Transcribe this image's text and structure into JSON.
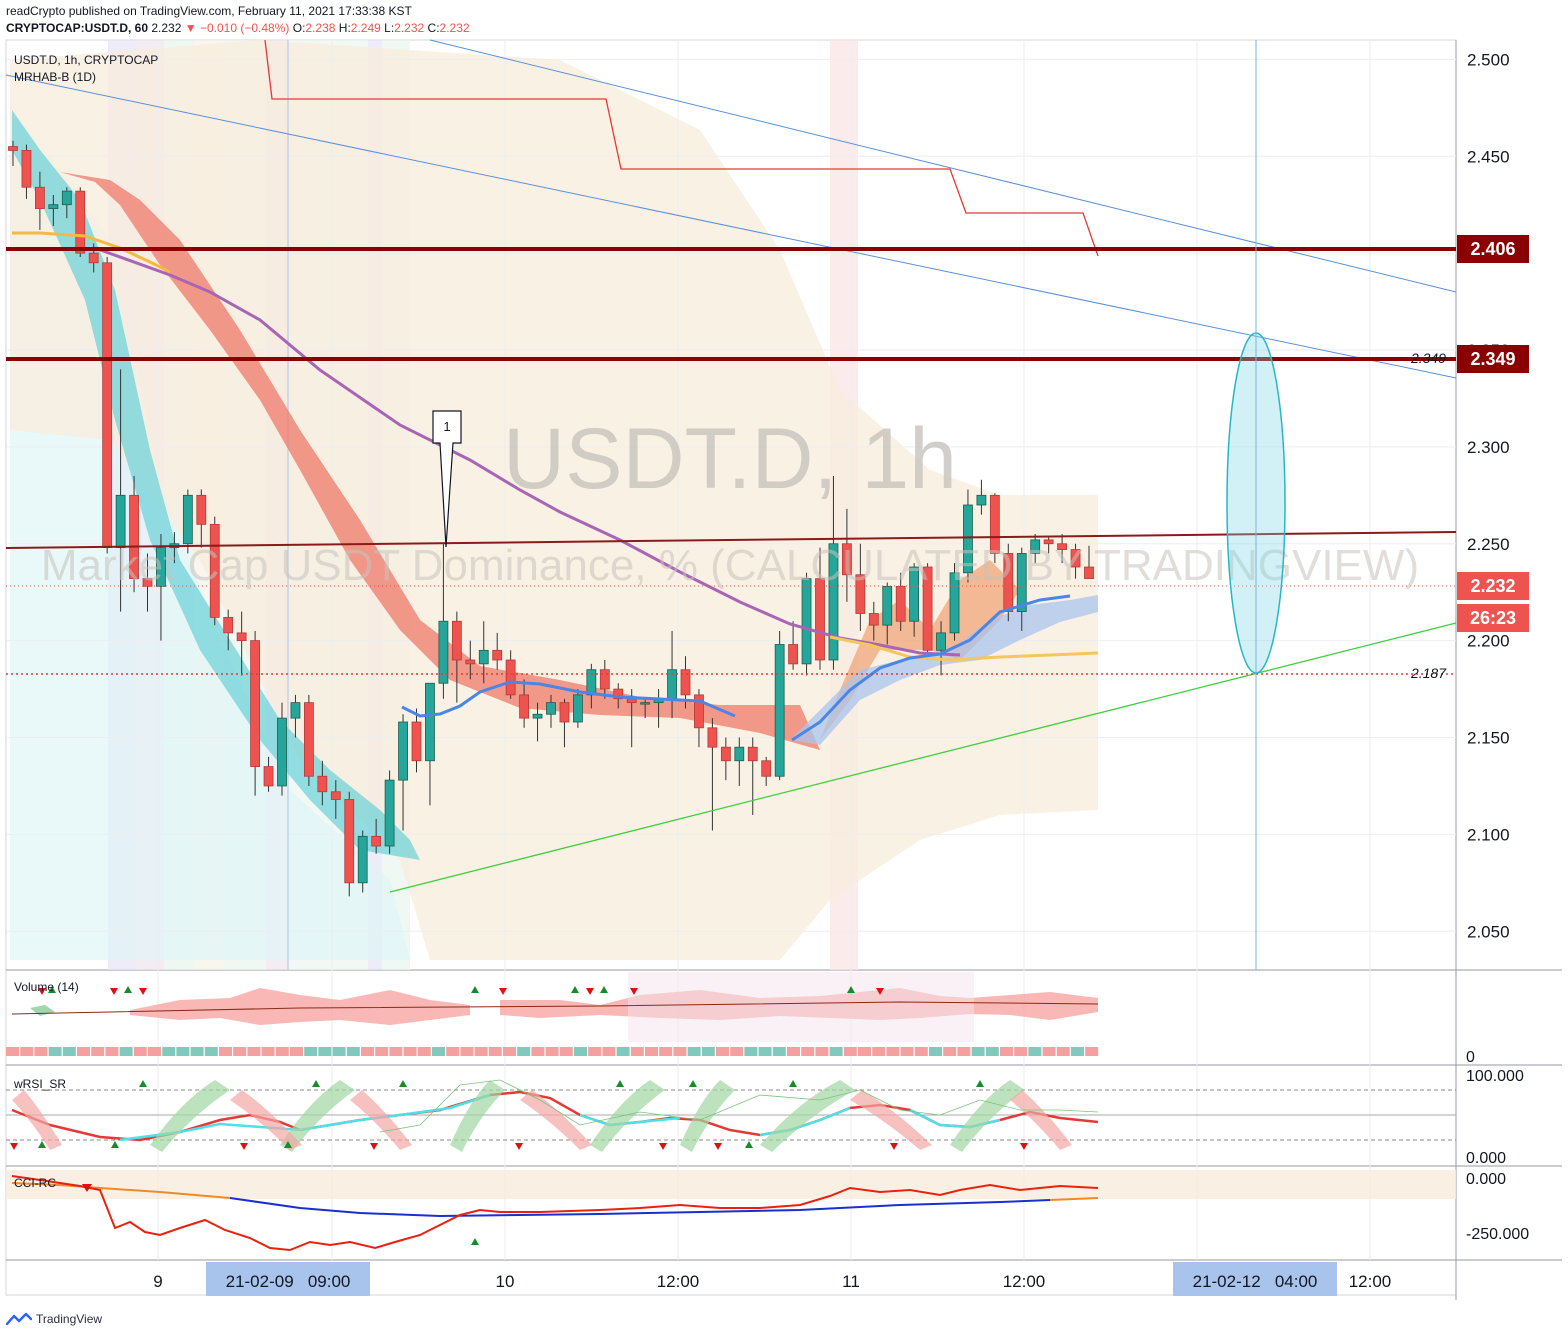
{
  "header": {
    "publisher": "readCrypto published on TradingView.com, February 11, 2021 17:33:38 KST",
    "symbol": "CRYPTOCAP:USDT.D, 60",
    "last": "2.232",
    "change": "−0.010 (−0.48%)",
    "ohlc": {
      "o_label": "O:",
      "o": "2.238",
      "h_label": "H:",
      "h": "2.249",
      "l_label": "L:",
      "l": "2.232",
      "c_label": "C:",
      "c": "2.232"
    }
  },
  "legend": {
    "series": "USDT.D, 1h, CRYPTOCAP",
    "indicator": "MRHAB-B (1D)"
  },
  "watermark": {
    "big": "USDT.D, 1h",
    "small": "Market Cap USDT Dominance, % (CALCULATED BY TRADINGVIEW)"
  },
  "annotations": {
    "marker": "1",
    "level_upper": "2.349",
    "level_lower": "2.187"
  },
  "price_badges": {
    "r1": "2.406",
    "r2": "2.349",
    "last": "2.232",
    "countdown": "26:23"
  },
  "panes": {
    "volume": "Volume (14)",
    "volume_zero": "0",
    "rsi": "wRSI_SR",
    "cci": "CCI-RC"
  },
  "colors": {
    "up": "#26a69a",
    "down": "#ef5350",
    "resistance": "#8b0000",
    "trend": "#5b8fd9",
    "support": "#3ecf3e",
    "ellipse": "#26b7c9"
  },
  "time_labels": {
    "t1": "9",
    "t1_hl": "21-02-09   09:00",
    "t2": "10",
    "t3": "12:00",
    "t4": "11",
    "t5": "12:00",
    "t6_hl": "21-02-12   04:00",
    "t7": "12:00"
  },
  "footer": {
    "brand": "TradingView"
  },
  "chart_data": {
    "type": "candlestick",
    "title": "USDT.D, 1h",
    "ylim": [
      2.03,
      2.51
    ],
    "y_ticks": [
      "2.500",
      "2.450",
      "2.400",
      "2.350",
      "2.300",
      "2.250",
      "2.200",
      "2.150",
      "2.100",
      "2.050"
    ],
    "horizontal_levels": [
      2.406,
      2.349,
      2.187
    ],
    "rsi_ticks": [
      "100.000",
      "0.000"
    ],
    "cci_ticks": [
      "0.000",
      "-250.000"
    ],
    "candles": [
      [
        2.455,
        2.458,
        2.445,
        2.453
      ],
      [
        2.453,
        2.456,
        2.428,
        2.434
      ],
      [
        2.434,
        2.442,
        2.412,
        2.423
      ],
      [
        2.423,
        2.43,
        2.414,
        2.425
      ],
      [
        2.425,
        2.434,
        2.418,
        2.432
      ],
      [
        2.432,
        2.434,
        2.398,
        2.4
      ],
      [
        2.4,
        2.405,
        2.39,
        2.395
      ],
      [
        2.395,
        2.398,
        2.245,
        2.248
      ],
      [
        2.248,
        2.34,
        2.215,
        2.275
      ],
      [
        2.275,
        2.285,
        2.225,
        2.232
      ],
      [
        2.232,
        2.245,
        2.215,
        2.228
      ],
      [
        2.228,
        2.255,
        2.2,
        2.248
      ],
      [
        2.248,
        2.256,
        2.24,
        2.25
      ],
      [
        2.25,
        2.278,
        2.245,
        2.275
      ],
      [
        2.275,
        2.278,
        2.248,
        2.26
      ],
      [
        2.26,
        2.264,
        2.208,
        2.212
      ],
      [
        2.212,
        2.216,
        2.195,
        2.204
      ],
      [
        2.204,
        2.215,
        2.182,
        2.2
      ],
      [
        2.2,
        2.205,
        2.12,
        2.135
      ],
      [
        2.135,
        2.14,
        2.122,
        2.125
      ],
      [
        2.125,
        2.168,
        2.12,
        2.16
      ],
      [
        2.16,
        2.172,
        2.15,
        2.168
      ],
      [
        2.168,
        2.172,
        2.125,
        2.13
      ],
      [
        2.13,
        2.138,
        2.115,
        2.122
      ],
      [
        2.122,
        2.128,
        2.108,
        2.118
      ],
      [
        2.118,
        2.122,
        2.068,
        2.075
      ],
      [
        2.075,
        2.102,
        2.07,
        2.099
      ],
      [
        2.099,
        2.108,
        2.09,
        2.094
      ],
      [
        2.094,
        2.133,
        2.09,
        2.128
      ],
      [
        2.128,
        2.162,
        2.102,
        2.158
      ],
      [
        2.158,
        2.165,
        2.132,
        2.138
      ],
      [
        2.138,
        2.175,
        2.115,
        2.178
      ],
      [
        2.178,
        2.25,
        2.17,
        2.21
      ],
      [
        2.21,
        2.215,
        2.168,
        2.19
      ],
      [
        2.19,
        2.2,
        2.18,
        2.188
      ],
      [
        2.188,
        2.21,
        2.178,
        2.195
      ],
      [
        2.195,
        2.204,
        2.185,
        2.19
      ],
      [
        2.19,
        2.195,
        2.17,
        2.172
      ],
      [
        2.172,
        2.18,
        2.155,
        2.16
      ],
      [
        2.16,
        2.168,
        2.148,
        2.162
      ],
      [
        2.162,
        2.172,
        2.155,
        2.168
      ],
      [
        2.168,
        2.17,
        2.145,
        2.158
      ],
      [
        2.158,
        2.175,
        2.155,
        2.172
      ],
      [
        2.172,
        2.188,
        2.165,
        2.185
      ],
      [
        2.185,
        2.19,
        2.17,
        2.175
      ],
      [
        2.175,
        2.178,
        2.165,
        2.17
      ],
      [
        2.17,
        2.175,
        2.145,
        2.168
      ],
      [
        2.168,
        2.17,
        2.16,
        2.168
      ],
      [
        2.168,
        2.175,
        2.155,
        2.17
      ],
      [
        2.17,
        2.205,
        2.16,
        2.185
      ],
      [
        2.185,
        2.192,
        2.165,
        2.172
      ],
      [
        2.172,
        2.175,
        2.145,
        2.155
      ],
      [
        2.155,
        2.16,
        2.102,
        2.145
      ],
      [
        2.145,
        2.15,
        2.128,
        2.138
      ],
      [
        2.138,
        2.15,
        2.125,
        2.145
      ],
      [
        2.145,
        2.15,
        2.11,
        2.138
      ],
      [
        2.138,
        2.14,
        2.125,
        2.13
      ],
      [
        2.13,
        2.205,
        2.128,
        2.198
      ],
      [
        2.198,
        2.21,
        2.185,
        2.188
      ],
      [
        2.188,
        2.235,
        2.182,
        2.232
      ],
      [
        2.232,
        2.248,
        2.185,
        2.19
      ],
      [
        2.19,
        2.285,
        2.185,
        2.25
      ],
      [
        2.25,
        2.268,
        2.22,
        2.234
      ],
      [
        2.234,
        2.25,
        2.205,
        2.214
      ],
      [
        2.214,
        2.22,
        2.2,
        2.208
      ],
      [
        2.208,
        2.23,
        2.198,
        2.228
      ],
      [
        2.228,
        2.235,
        2.205,
        2.21
      ],
      [
        2.21,
        2.24,
        2.202,
        2.238
      ],
      [
        2.238,
        2.24,
        2.19,
        2.195
      ],
      [
        2.195,
        2.21,
        2.182,
        2.204
      ],
      [
        2.204,
        2.24,
        2.2,
        2.235
      ],
      [
        2.235,
        2.278,
        2.23,
        2.27
      ],
      [
        2.27,
        2.283,
        2.265,
        2.275
      ],
      [
        2.275,
        2.276,
        2.24,
        2.245
      ],
      [
        2.245,
        2.25,
        2.21,
        2.215
      ],
      [
        2.215,
        2.248,
        2.205,
        2.245
      ],
      [
        2.245,
        2.255,
        2.24,
        2.252
      ],
      [
        2.252,
        2.254,
        2.245,
        2.25
      ],
      [
        2.25,
        2.255,
        2.24,
        2.247
      ],
      [
        2.247,
        2.25,
        2.232,
        2.238
      ],
      [
        2.238,
        2.249,
        2.232,
        2.232
      ]
    ]
  }
}
